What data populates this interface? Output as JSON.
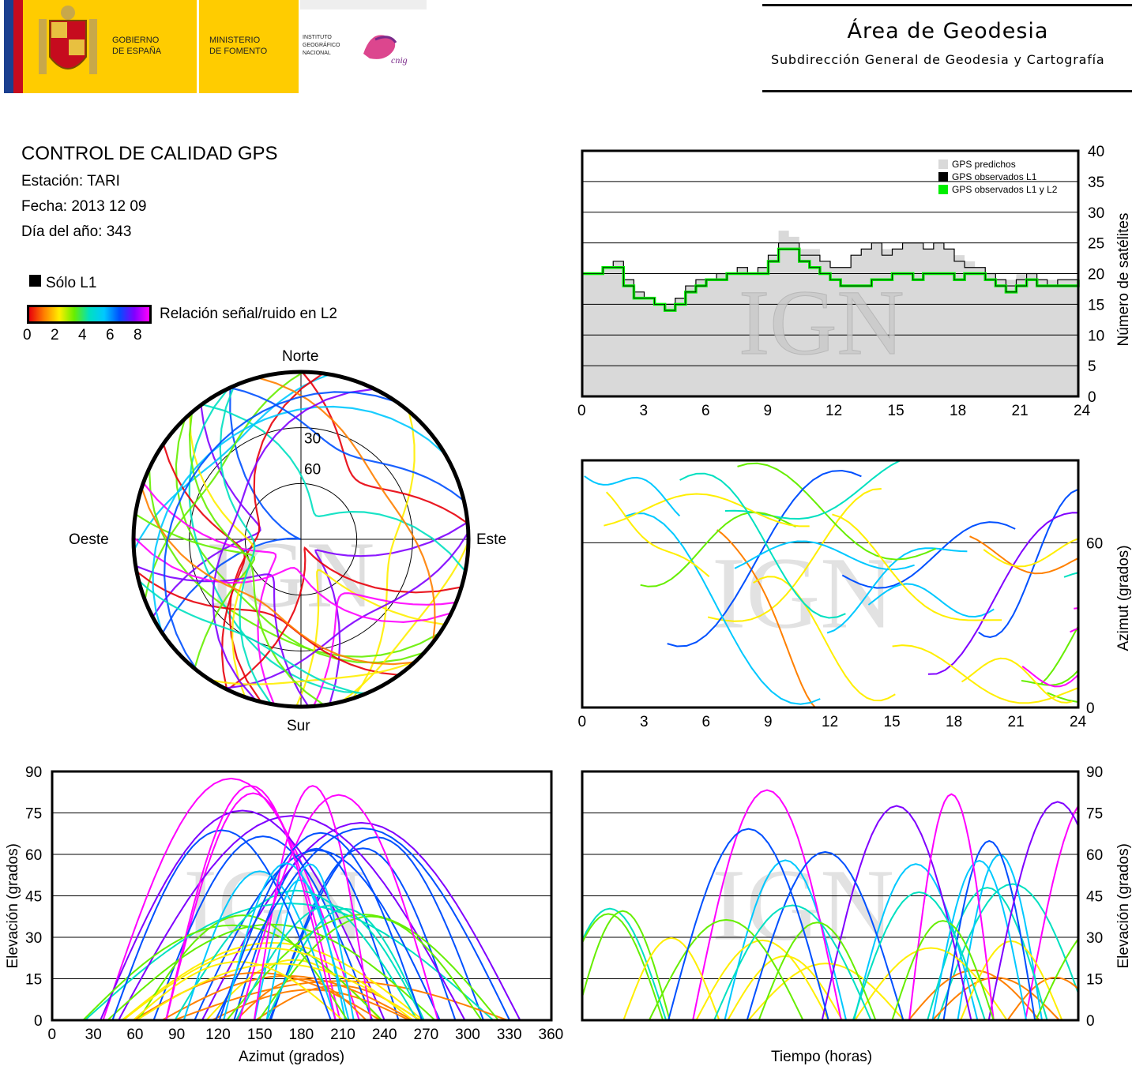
{
  "header": {
    "gov_line1": "GOBIERNO",
    "gov_line2": "DE ESPAÑA",
    "min_line1": "MINISTERIO",
    "min_line2": "DE FOMENTO",
    "inst_line1": "INSTITUTO",
    "inst_line2": "GEOGRÁFICO",
    "inst_line3": "NACIONAL",
    "cnig": "cnig",
    "area_title": "Área de Geodesia",
    "area_subtitle": "Subdirección General de Geodesia y Cartografía"
  },
  "info": {
    "title": "CONTROL DE CALIDAD GPS",
    "station": "Estación: TARI",
    "date": "Fecha: 2013 12 09",
    "doy": "Día del año: 343",
    "only_l1": "Sólo L1",
    "snr_label": "Relación señal/ruido en L2",
    "snr_ticks": [
      "0",
      "2",
      "4",
      "6",
      "8"
    ]
  },
  "watermark": "IGN",
  "colors": {
    "predicted": "#d9d9d9",
    "observed_l1": "#000000",
    "observed_l1_l2": "#00ee00",
    "snr_scale": [
      "#e8000b",
      "#ff8000",
      "#ffee00",
      "#66ee00",
      "#00e0c0",
      "#00c8ff",
      "#0050ff",
      "#8000ff",
      "#ff00ff"
    ]
  },
  "chart_data": [
    {
      "id": "satellites",
      "type": "area",
      "ylabel": "Número de satélites",
      "xlim": [
        0,
        24
      ],
      "ylim": [
        0,
        40
      ],
      "xticks": [
        "0",
        "3",
        "6",
        "9",
        "12",
        "15",
        "18",
        "21",
        "24"
      ],
      "yticks": [
        "0",
        "5",
        "10",
        "15",
        "20",
        "25",
        "30",
        "35",
        "40"
      ],
      "grid": true,
      "legend": "top-right",
      "series": [
        {
          "name": "GPS predichos",
          "x": [
            0,
            1,
            1.5,
            2,
            2.5,
            3,
            3.5,
            4,
            4.5,
            5,
            5.5,
            6,
            6.5,
            7,
            7.5,
            8,
            8.5,
            9,
            9.5,
            10,
            10.5,
            11,
            11.5,
            12,
            12.5,
            13,
            13.5,
            14,
            14.5,
            15,
            15.5,
            16,
            16.5,
            17,
            17.5,
            18,
            18.5,
            19,
            19.5,
            20,
            20.5,
            21,
            21.5,
            22,
            22.5,
            23,
            23.5,
            24
          ],
          "values": [
            20,
            21,
            22,
            19,
            17,
            16,
            15,
            15,
            16,
            18,
            19,
            19,
            20,
            20,
            21,
            20,
            21,
            23,
            27,
            26,
            24,
            24,
            22,
            21,
            21,
            23,
            24,
            25,
            24,
            24,
            25,
            25,
            24,
            25,
            24,
            23,
            22,
            21,
            20,
            19,
            19,
            20,
            20,
            19,
            19,
            19,
            19,
            20
          ]
        },
        {
          "name": "GPS observados L1",
          "x": [
            0,
            1,
            1.5,
            2,
            2.5,
            3,
            3.5,
            4,
            4.5,
            5,
            5.5,
            6,
            6.5,
            7,
            7.5,
            8,
            8.5,
            9,
            9.5,
            10,
            10.5,
            11,
            11.5,
            12,
            12.5,
            13,
            13.5,
            14,
            14.5,
            15,
            15.5,
            16,
            16.5,
            17,
            17.5,
            18,
            18.5,
            19,
            19.5,
            20,
            20.5,
            21,
            21.5,
            22,
            22.5,
            23,
            23.5,
            24
          ],
          "values": [
            20,
            21,
            22,
            19,
            17,
            16,
            15,
            15,
            16,
            18,
            19,
            19,
            20,
            20,
            21,
            20,
            21,
            23,
            25,
            25,
            23,
            23,
            22,
            21,
            21,
            23,
            24,
            25,
            23,
            24,
            25,
            25,
            24,
            25,
            24,
            22,
            21,
            21,
            20,
            19,
            18,
            19,
            20,
            19,
            18,
            19,
            19,
            19
          ]
        },
        {
          "name": "GPS observados L1 y L2",
          "x": [
            0,
            1,
            1.5,
            2,
            2.5,
            3,
            3.5,
            4,
            4.5,
            5,
            5.5,
            6,
            6.5,
            7,
            7.5,
            8,
            8.5,
            9,
            9.5,
            10,
            10.5,
            11,
            11.5,
            12,
            12.5,
            13,
            13.5,
            14,
            14.5,
            15,
            15.5,
            16,
            16.5,
            17,
            17.5,
            18,
            18.5,
            19,
            19.5,
            20,
            20.5,
            21,
            21.5,
            22,
            22.5,
            23,
            23.5,
            24
          ],
          "values": [
            20,
            21,
            21,
            18,
            16,
            16,
            15,
            14,
            15,
            17,
            18,
            19,
            19,
            20,
            20,
            20,
            20,
            22,
            24,
            24,
            22,
            21,
            20,
            19,
            18,
            18,
            18,
            19,
            19,
            20,
            20,
            19,
            20,
            20,
            20,
            19,
            20,
            20,
            19,
            18,
            17,
            18,
            19,
            18,
            18,
            18,
            18,
            19
          ]
        }
      ]
    },
    {
      "id": "skyplot",
      "type": "scatter",
      "directions": {
        "north": "Norte",
        "south": "Sur",
        "west": "Oeste",
        "east": "Este"
      },
      "elevation_rings": [
        "30",
        "60"
      ]
    },
    {
      "id": "azimuth-vs-time",
      "type": "scatter",
      "ylabel": "Azimut (grados)",
      "xlim": [
        0,
        24
      ],
      "ylim": [
        0,
        90
      ],
      "xticks": [
        "0",
        "3",
        "6",
        "9",
        "12",
        "15",
        "18",
        "21",
        "24"
      ],
      "yticks": [
        "0",
        "60"
      ],
      "grid": true
    },
    {
      "id": "elevation-vs-azimuth",
      "type": "scatter",
      "xlabel": "Azimut (grados)",
      "ylabel": "Elevación (grados)",
      "xlim": [
        0,
        360
      ],
      "ylim": [
        0,
        90
      ],
      "xticks": [
        "0",
        "30",
        "60",
        "90",
        "120",
        "150",
        "180",
        "210",
        "240",
        "270",
        "300",
        "330",
        "360"
      ],
      "yticks": [
        "0",
        "15",
        "30",
        "45",
        "60",
        "75",
        "90"
      ],
      "grid": true
    },
    {
      "id": "elevation-vs-time",
      "type": "line",
      "xlabel": "Tiempo (horas)",
      "ylabel": "Elevación (grados)",
      "xlim": [
        0,
        24
      ],
      "ylim": [
        0,
        90
      ],
      "yticks": [
        "0",
        "15",
        "30",
        "45",
        "60",
        "75",
        "90"
      ],
      "grid": true
    }
  ]
}
